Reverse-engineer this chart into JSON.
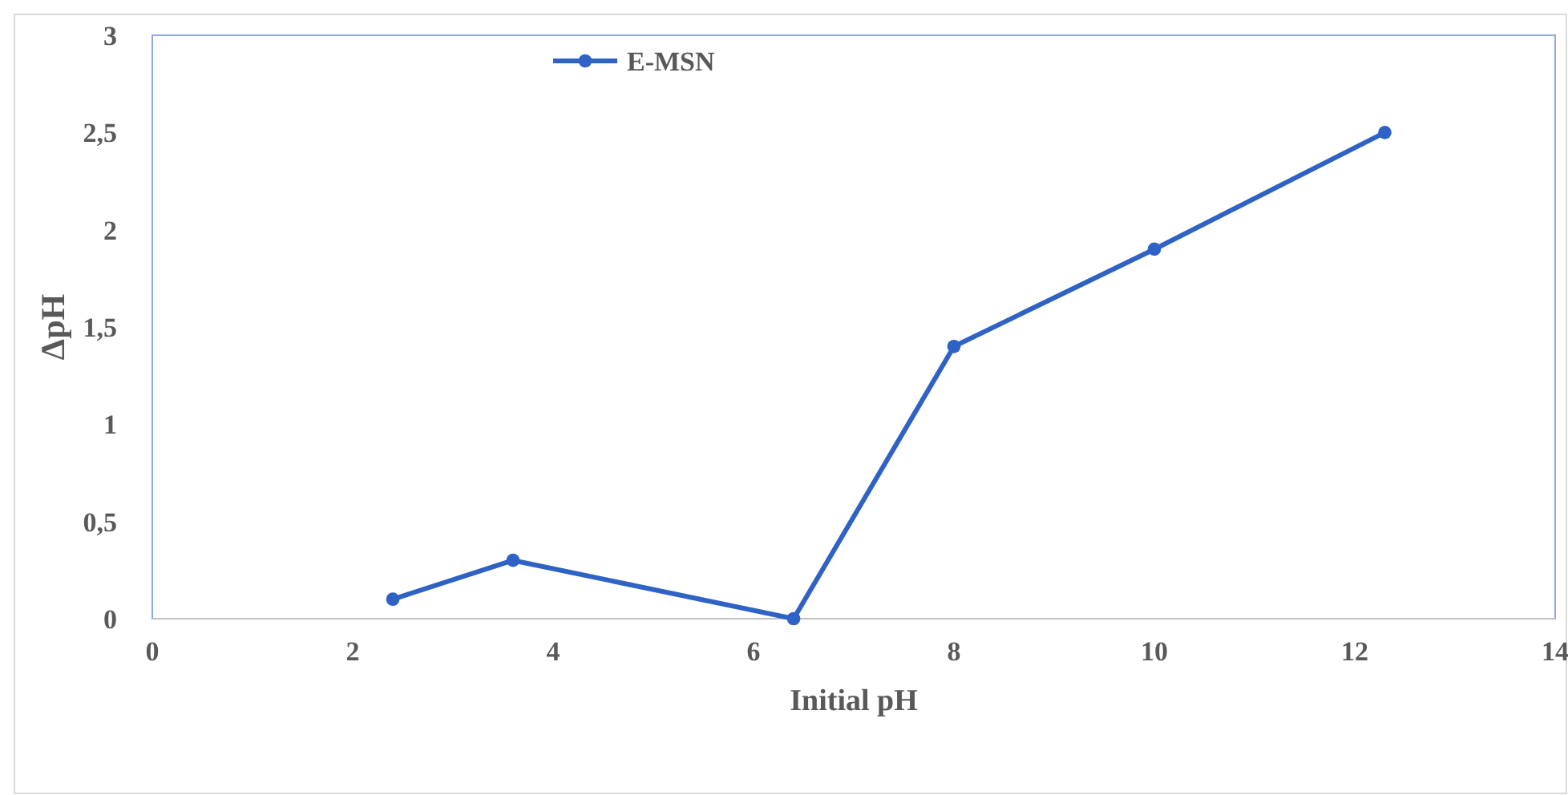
{
  "chart_data": {
    "type": "line",
    "xlabel": "Initial pH",
    "ylabel": "ΔpH",
    "series": [
      {
        "name": "E-MSN",
        "color": "#2e62c4",
        "x": [
          2.4,
          3.6,
          6.4,
          8,
          10,
          12.3
        ],
        "values": [
          0.1,
          0.3,
          0,
          1.4,
          1.9,
          2.5
        ]
      }
    ],
    "xlim": [
      0,
      14
    ],
    "xticks": [
      0,
      2,
      4,
      6,
      8,
      10,
      12,
      14
    ],
    "ylim": [
      0,
      3
    ],
    "yticks": [
      0,
      {
        "value": 0.5,
        "label": "0,5"
      },
      1,
      {
        "value": 1.5,
        "label": "1,5"
      },
      2,
      {
        "value": 2.5,
        "label": "2,5"
      },
      3
    ],
    "grid": false,
    "legend": "top left",
    "marker": "circle",
    "line_style": "solid"
  }
}
